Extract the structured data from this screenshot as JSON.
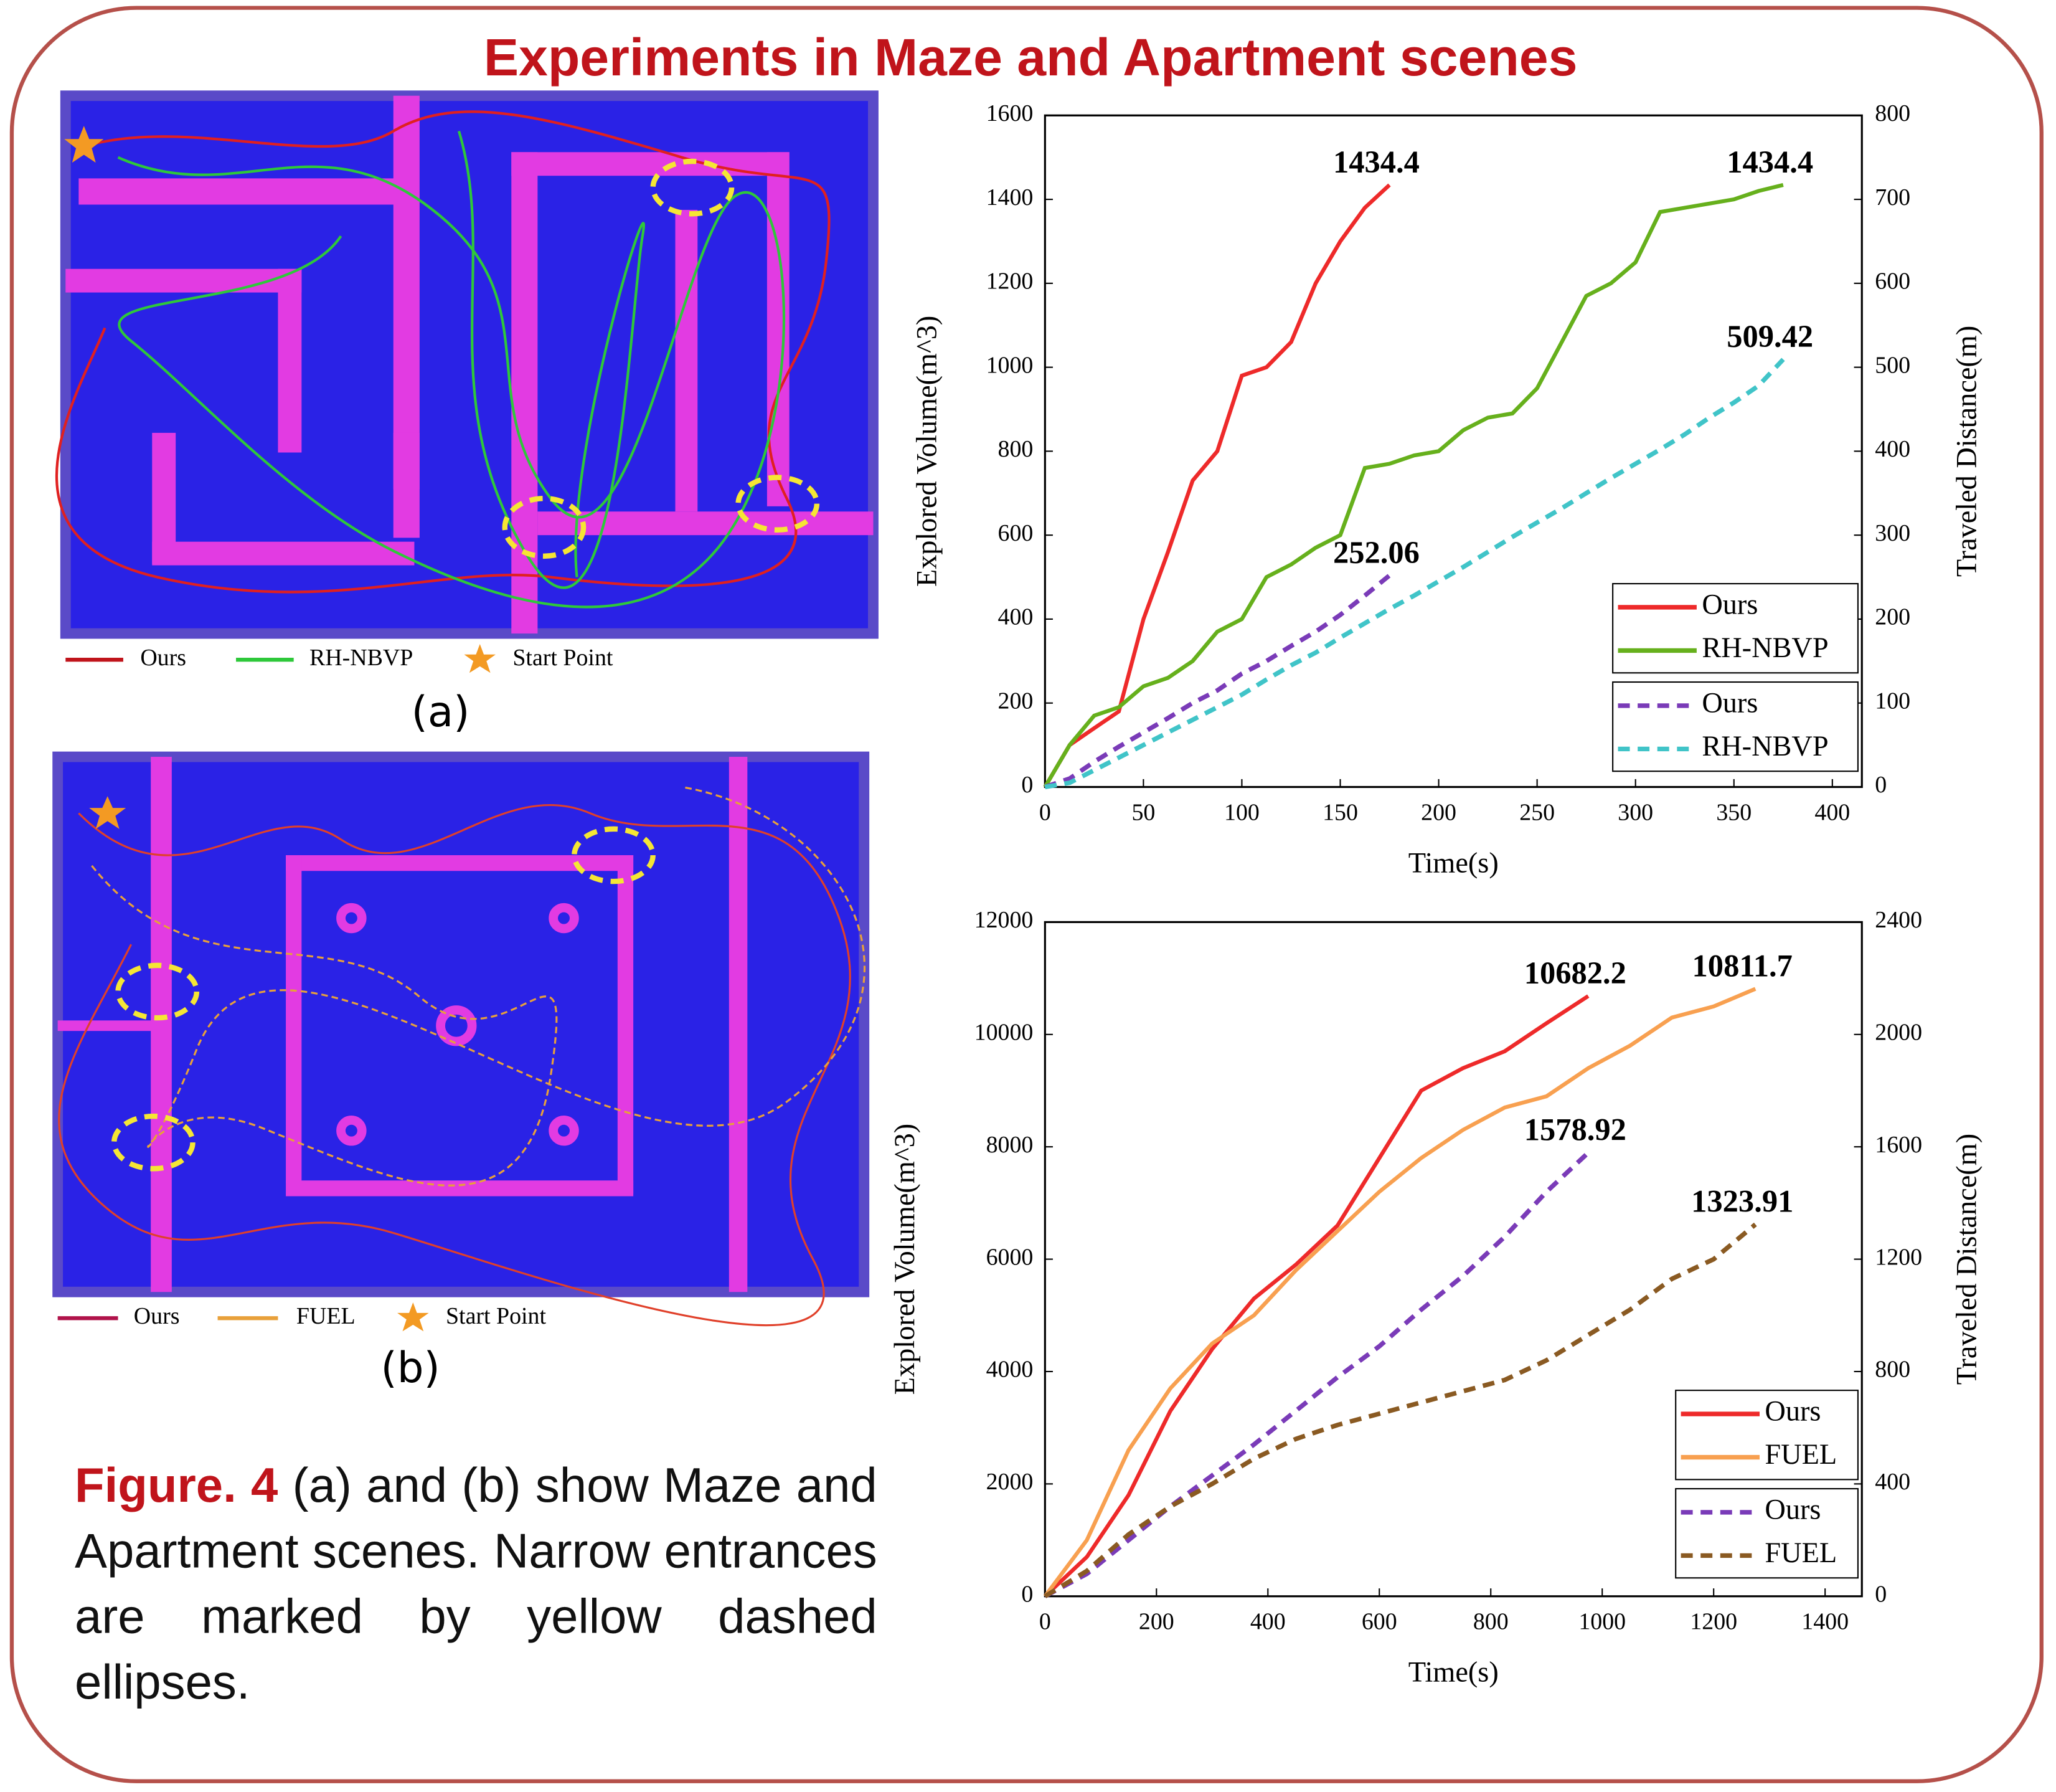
{
  "title": "Experiments in Maze and Apartment scenes",
  "figures": [
    {
      "legend": [
        "Ours",
        "RH-NBVP",
        "Start Point"
      ],
      "label": "(a)"
    },
    {
      "legend": [
        "Ours",
        "FUEL",
        "Start Point"
      ],
      "label": "(b)"
    }
  ],
  "caption": {
    "label": "Figure. 4",
    "text": "(a) and (b) show Maze and Apartment scenes. Narrow entrances are marked by yellow dashed ellipses."
  },
  "chart_data": [
    {
      "type": "line",
      "xlabel": "Time(s)",
      "ylabel": "Explored Volume(m^3)",
      "y2label": "Traveled Distance(m)",
      "x": [
        0,
        12.5,
        25,
        37.5,
        50,
        62.5,
        75,
        87.5,
        100,
        112.5,
        125,
        137.5,
        150,
        162.5,
        175,
        187.5,
        200,
        212.5,
        225,
        237.5,
        250,
        262.5,
        275,
        287.5,
        300,
        312.5,
        325,
        337.5,
        350,
        362.5,
        375
      ],
      "xlim": [
        0,
        415
      ],
      "xticks": [
        0,
        50,
        100,
        150,
        200,
        250,
        300,
        350,
        400
      ],
      "ylim": [
        0,
        1600
      ],
      "yticks": [
        0,
        200,
        400,
        600,
        800,
        1000,
        1200,
        1400,
        1600
      ],
      "y2lim": [
        0,
        800
      ],
      "y2ticks": [
        0,
        100,
        200,
        300,
        400,
        500,
        600,
        700,
        800
      ],
      "end_labels": true,
      "legend": "lower right",
      "series": [
        {
          "name": "Ours",
          "color": "#ee2a2a",
          "dashed": false,
          "values": [
            0,
            100,
            140,
            180,
            400,
            560,
            730,
            800,
            980,
            1000,
            1060,
            1200,
            1300,
            1380,
            1434.4,
            null,
            null,
            null,
            null,
            null,
            null,
            null,
            null,
            null,
            null,
            null,
            null,
            null,
            null,
            null,
            null
          ]
        },
        {
          "name": "RH-NBVP",
          "color": "#66b01c",
          "dashed": false,
          "values": [
            0,
            100,
            170,
            190,
            240,
            260,
            300,
            370,
            400,
            500,
            530,
            570,
            600,
            760,
            770,
            790,
            800,
            850,
            880,
            890,
            950,
            1060,
            1170,
            1200,
            1250,
            1370,
            1380,
            1390,
            1400,
            1420,
            1434.4
          ]
        },
        {
          "name": "Ours",
          "color": "#7a3bb8",
          "dashed": true,
          "axis": "y2",
          "values": [
            0,
            10,
            30,
            48,
            65,
            82,
            100,
            115,
            135,
            150,
            168,
            185,
            205,
            228,
            252.06,
            null,
            null,
            null,
            null,
            null,
            null,
            null,
            null,
            null,
            null,
            null,
            null,
            null,
            null,
            null,
            null
          ]
        },
        {
          "name": "RH-NBVP",
          "color": "#40c4c8",
          "dashed": true,
          "axis": "y2",
          "values": [
            0,
            5,
            20,
            35,
            50,
            65,
            80,
            95,
            110,
            128,
            145,
            160,
            178,
            195,
            212,
            228,
            245,
            262,
            280,
            298,
            315,
            332,
            350,
            368,
            385,
            402,
            420,
            440,
            458,
            478,
            509.42
          ]
        }
      ]
    },
    {
      "type": "line",
      "xlabel": "Time(s)",
      "ylabel": "Explored Volume(m^3)",
      "y2label": "Traveled Distance(m)",
      "x": [
        0,
        75,
        150,
        225,
        300,
        375,
        450,
        525,
        600,
        675,
        750,
        825,
        900,
        975,
        1050,
        1125,
        1200,
        1275
      ],
      "xlim": [
        0,
        1466
      ],
      "xticks": [
        0,
        200,
        400,
        600,
        800,
        1000,
        1200,
        1400
      ],
      "ylim": [
        0,
        12000
      ],
      "yticks": [
        0,
        2000,
        4000,
        6000,
        8000,
        10000,
        12000
      ],
      "y2lim": [
        0,
        2400
      ],
      "y2ticks": [
        0,
        400,
        800,
        1200,
        1600,
        2000,
        2400
      ],
      "end_labels": true,
      "legend": "lower right",
      "series": [
        {
          "name": "Ours",
          "color": "#ee2a2a",
          "dashed": false,
          "values": [
            0,
            700,
            1800,
            3300,
            4400,
            5300,
            5900,
            6600,
            7800,
            9000,
            9400,
            9700,
            10200,
            10682.2,
            null,
            null,
            null,
            null
          ]
        },
        {
          "name": "FUEL",
          "color": "#f8a050",
          "dashed": false,
          "values": [
            0,
            1000,
            2600,
            3700,
            4500,
            5000,
            5800,
            6500,
            7200,
            7800,
            8300,
            8700,
            8900,
            9400,
            9800,
            10300,
            10500,
            10811.7
          ]
        },
        {
          "name": "Ours",
          "color": "#7a3bb8",
          "dashed": true,
          "axis": "y2",
          "values": [
            0,
            80,
            200,
            320,
            430,
            540,
            660,
            780,
            890,
            1020,
            1140,
            1280,
            1440,
            1578.92,
            null,
            null,
            null,
            null
          ]
        },
        {
          "name": "FUEL",
          "color": "#8a5a22",
          "dashed": true,
          "axis": "y2",
          "values": [
            0,
            90,
            220,
            320,
            400,
            490,
            560,
            610,
            650,
            690,
            730,
            770,
            840,
            930,
            1020,
            1130,
            1200,
            1323.91
          ]
        }
      ]
    }
  ]
}
